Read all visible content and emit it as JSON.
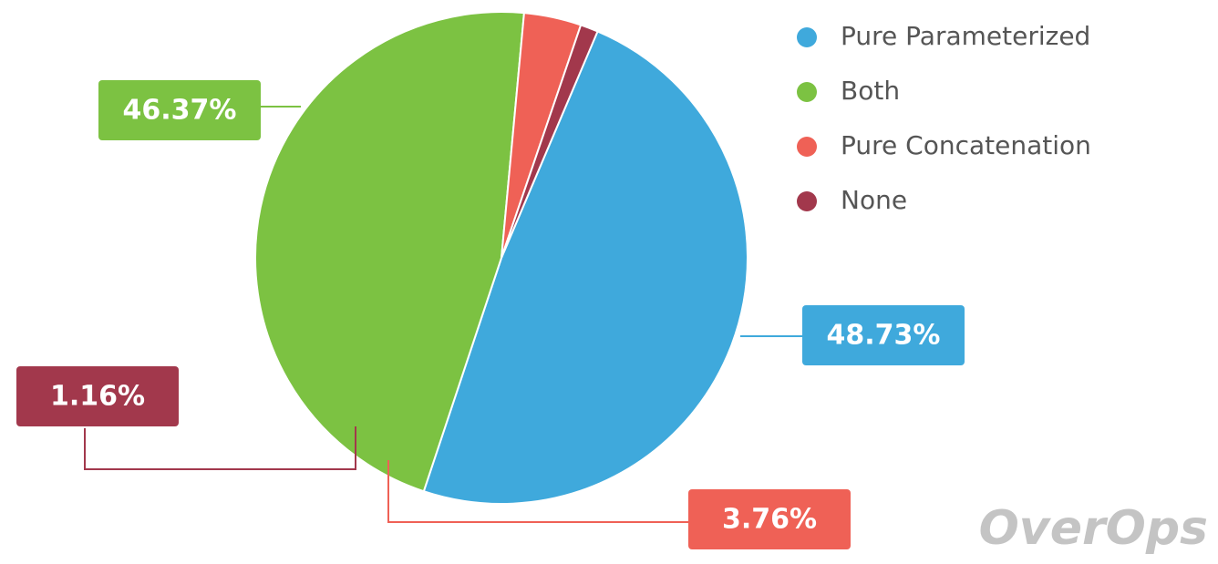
{
  "chart_data": {
    "type": "pie",
    "categories": [
      "Pure Parameterized",
      "Both",
      "Pure Concatenation",
      "None"
    ],
    "values": [
      48.73,
      46.37,
      3.76,
      1.16
    ],
    "value_labels": [
      "48.73%",
      "46.37%",
      "3.76%",
      "1.16%"
    ],
    "colors": [
      "#3fa9dc",
      "#7cc242",
      "#ef6156",
      "#a2384c"
    ],
    "legend": "top-right",
    "watermark": "OverOps"
  }
}
